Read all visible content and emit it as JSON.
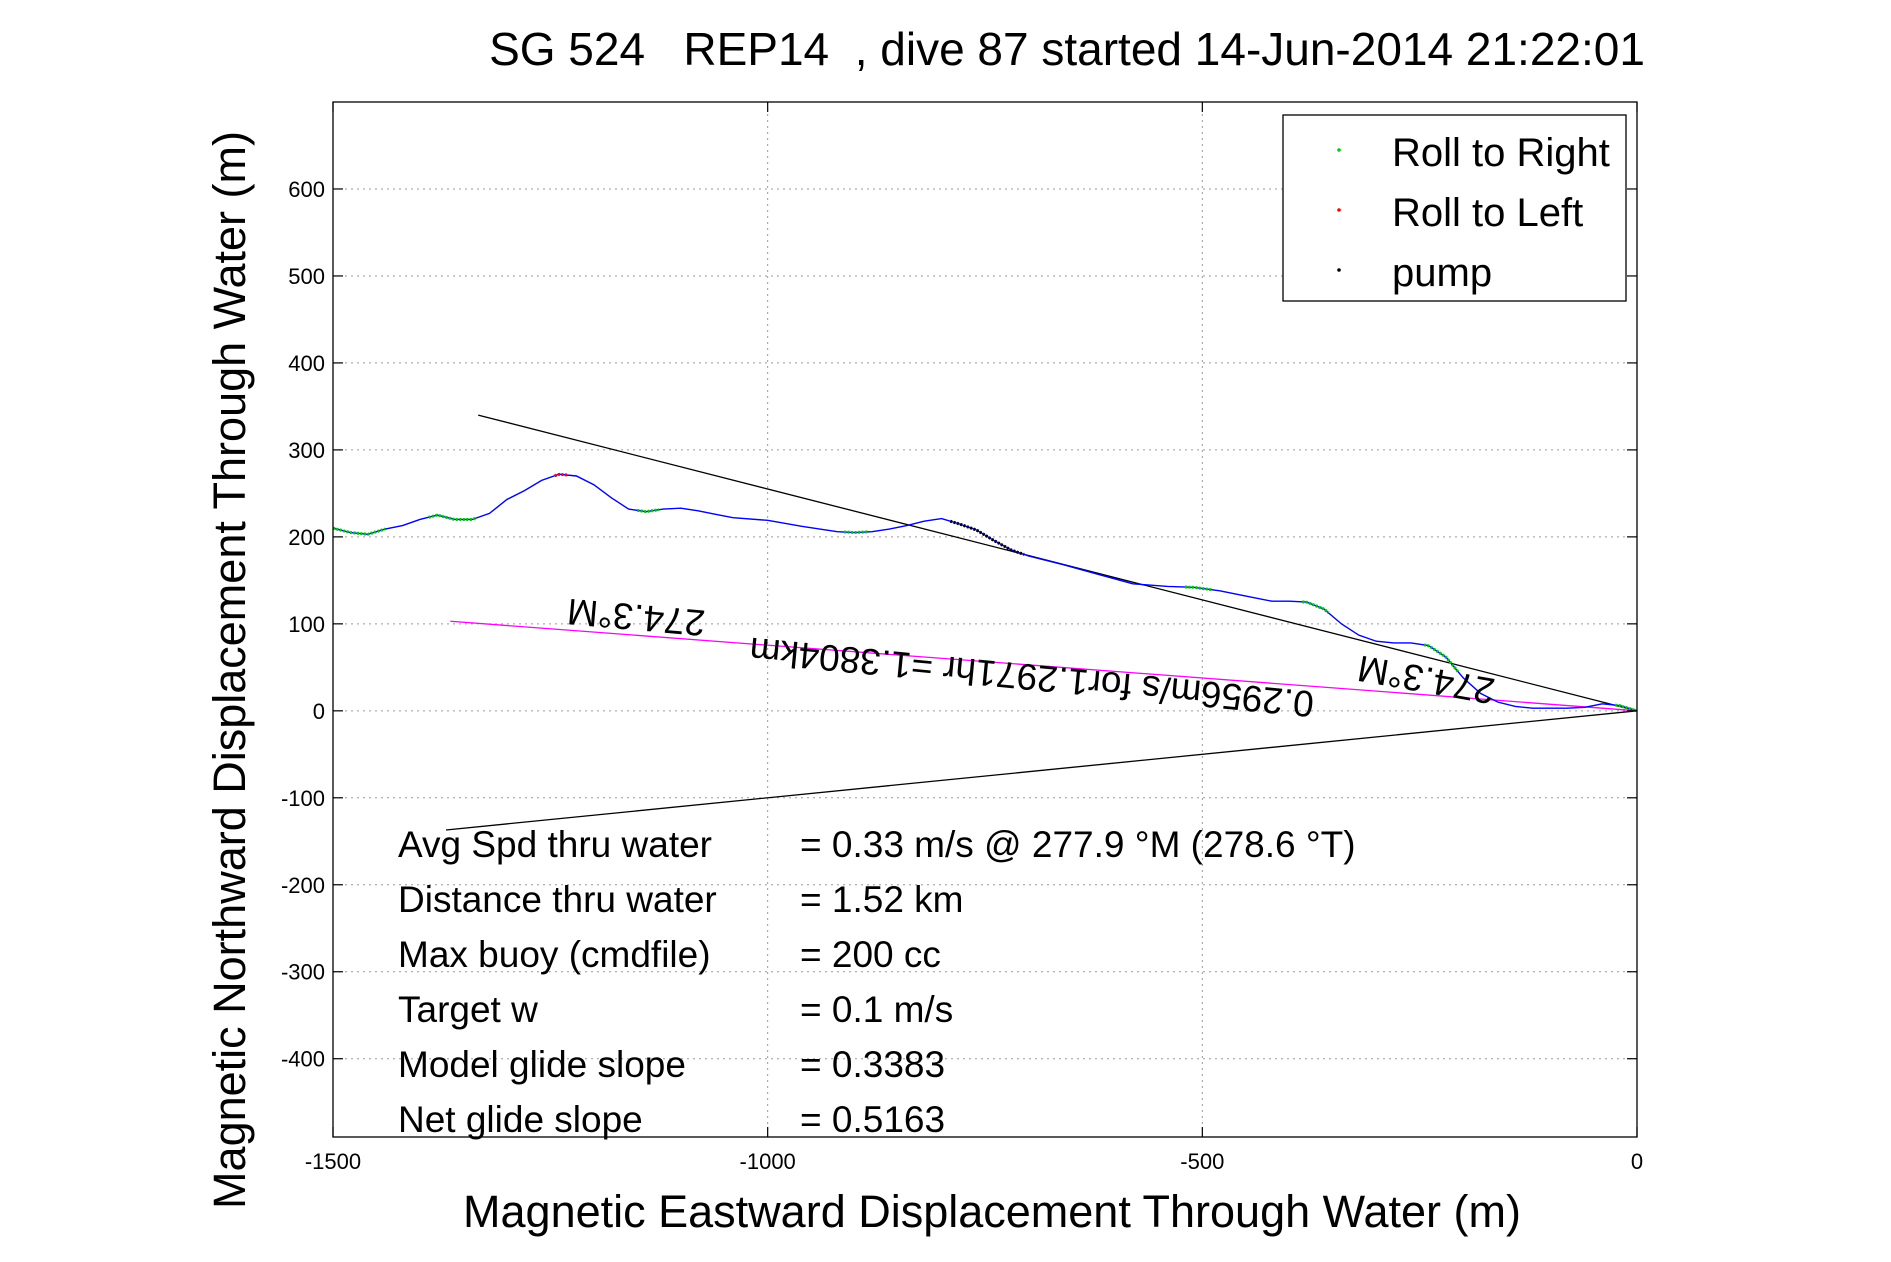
{
  "chart_data": {
    "type": "line",
    "title": "SG 524   REP14  , dive 87 started 14-Jun-2014 21:22:01",
    "xlabel": "Magnetic Eastward Displacement Through Water (m)",
    "ylabel": "Magnetic Northward Displacement Through Water (m)",
    "xlim": [
      -1500,
      0
    ],
    "ylim": [
      -490,
      700
    ],
    "xticks": [
      -1500,
      -1000,
      -500,
      0
    ],
    "yticks": [
      -400,
      -300,
      -200,
      -100,
      0,
      100,
      200,
      300,
      400,
      500,
      600
    ],
    "grid": true,
    "legend_position": "top-right",
    "legend": [
      {
        "name": "Roll to Right",
        "color": "#00cc00"
      },
      {
        "name": "Roll to Left",
        "color": "#ff0000"
      },
      {
        "name": "pump",
        "color": "#000000"
      }
    ],
    "track": {
      "color": "#0000ff",
      "x": [
        -1500,
        -1480,
        -1460,
        -1440,
        -1420,
        -1400,
        -1380,
        -1360,
        -1340,
        -1320,
        -1300,
        -1280,
        -1260,
        -1240,
        -1220,
        -1200,
        -1180,
        -1160,
        -1140,
        -1120,
        -1100,
        -1080,
        -1060,
        -1040,
        -1000,
        -960,
        -920,
        -900,
        -880,
        -860,
        -840,
        -820,
        -800,
        -780,
        -760,
        -740,
        -720,
        -700,
        -660,
        -620,
        -580,
        -540,
        -510,
        -480,
        -450,
        -420,
        -400,
        -380,
        -360,
        -340,
        -320,
        -300,
        -280,
        -260,
        -240,
        -220,
        -200,
        -180,
        -160,
        -140,
        -120,
        -100,
        -80,
        -60,
        -40,
        -20,
        0
      ],
      "y": [
        210,
        205,
        203,
        209,
        213,
        220,
        225,
        220,
        220,
        227,
        243,
        253,
        265,
        272,
        270,
        260,
        245,
        232,
        229,
        232,
        233,
        230,
        226,
        222,
        219,
        212,
        206,
        205,
        206,
        209,
        213,
        218,
        221,
        215,
        208,
        196,
        185,
        178,
        168,
        157,
        146,
        143,
        142,
        138,
        132,
        126,
        126,
        125,
        117,
        100,
        87,
        80,
        78,
        78,
        75,
        62,
        38,
        20,
        10,
        5,
        3,
        3,
        3,
        4,
        8,
        6,
        0
      ]
    },
    "roll_right_segments": [
      {
        "x": [
          -1500,
          -1440
        ]
      },
      {
        "x": [
          -1390,
          -1335
        ]
      },
      {
        "x": [
          -1150,
          -1125
        ]
      },
      {
        "x": [
          -912,
          -885
        ]
      },
      {
        "x": [
          -520,
          -490
        ]
      },
      {
        "x": [
          -385,
          -355
        ]
      },
      {
        "x": [
          -245,
          -205
        ]
      },
      {
        "x": [
          -25,
          0
        ]
      }
    ],
    "roll_left_segments": [
      {
        "x": [
          -1245,
          -1230
        ]
      }
    ],
    "pump_segments": [
      {
        "x": [
          -790,
          -705
        ]
      }
    ],
    "reference_lines": [
      {
        "color": "#000000",
        "x": [
          -1333,
          0
        ],
        "y": [
          340,
          0
        ]
      },
      {
        "color": "#000000",
        "x": [
          -1370,
          0
        ],
        "y": [
          -137,
          0
        ]
      },
      {
        "color": "#ff00ff",
        "x": [
          -1365,
          0
        ],
        "y": [
          103,
          0
        ]
      }
    ],
    "annotations": [
      {
        "text": "274.3°M",
        "x": -1150,
        "y": 122,
        "rotate": 185
      },
      {
        "text": "274.3°M",
        "x": -240,
        "y": 50,
        "rotate": 190
      },
      {
        "text": "0.2956m/s for1.2971hr =1.3804km",
        "x": -695,
        "y": 53,
        "rotate": 185.5
      }
    ],
    "stats": [
      {
        "label": "Avg Spd thru water",
        "value": "=  0.33 m/s @ 277.9 °M (278.6 °T)"
      },
      {
        "label": "Distance thru water",
        "value": "=  1.52 km"
      },
      {
        "label": "Max buoy (cmdfile)",
        "value": "= 200 cc"
      },
      {
        "label": "Target w",
        "value": "= 0.1 m/s"
      },
      {
        "label": "Model glide slope",
        "value": "= 0.3383"
      },
      {
        "label": "Net glide slope",
        "value": "= 0.5163"
      }
    ]
  }
}
